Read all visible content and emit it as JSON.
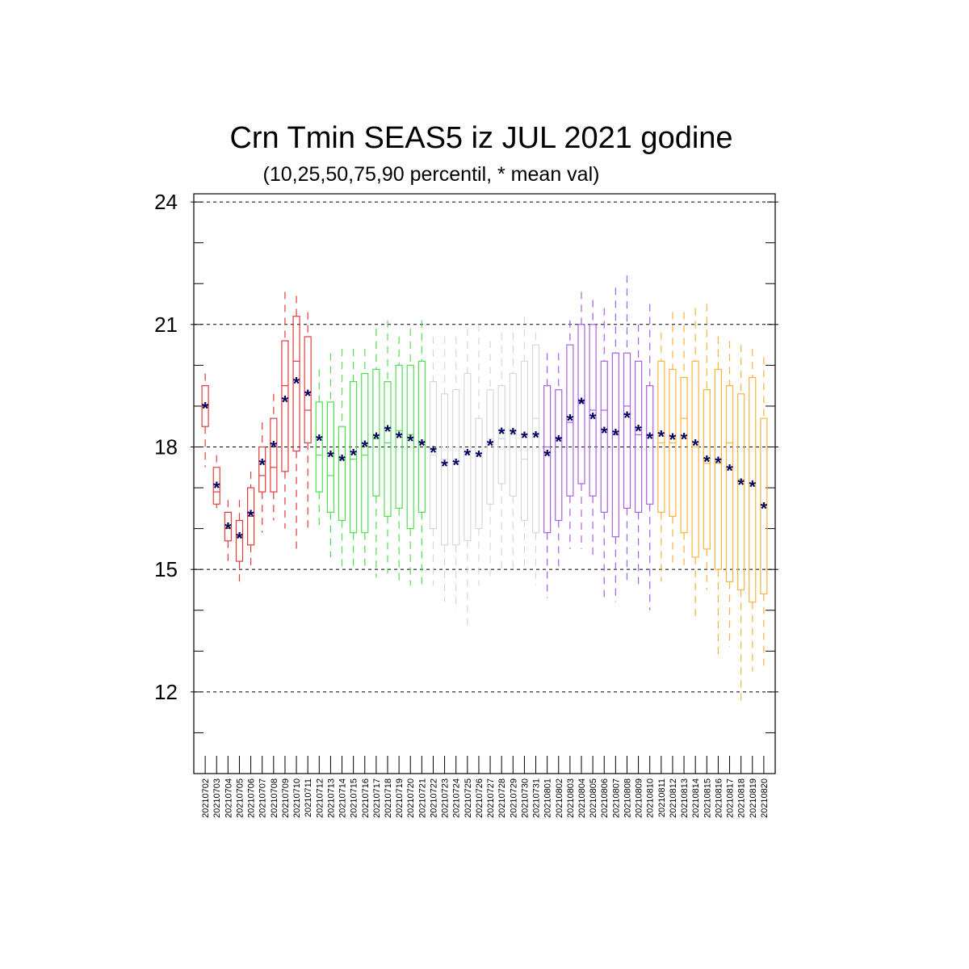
{
  "chart_data": {
    "type": "boxplot",
    "title": "Crn Tmin SEAS5 iz JUL 2021 godine",
    "subtitle": "(10,25,50,75,90 percentil, * mean val)",
    "ylim": [
      10,
      24.2
    ],
    "yticks": [
      "24",
      "21",
      "18",
      "15",
      "12"
    ],
    "ytick_values": [
      24,
      21,
      18,
      15,
      12
    ],
    "grid": "horizontal dashed at major ticks",
    "colors": {
      "week1": "#e03c3c",
      "week2": "#4ee04e",
      "week3": "#d8d8d8",
      "week4": "#a95ee8",
      "week5": "#f5b43c",
      "mean_marker": "#000060",
      "grid": "#000000"
    },
    "categories": [
      "20210702",
      "20210703",
      "20210704",
      "20210705",
      "20210706",
      "20210707",
      "20210708",
      "20210709",
      "20210710",
      "20210711",
      "20210712",
      "20210713",
      "20210714",
      "20210715",
      "20210716",
      "20210717",
      "20210718",
      "20210719",
      "20210720",
      "20210721",
      "20210722",
      "20210723",
      "20210724",
      "20210725",
      "20210726",
      "20210727",
      "20210728",
      "20210729",
      "20210730",
      "20210731",
      "20210801",
      "20210802",
      "20210803",
      "20210804",
      "20210805",
      "20210806",
      "20210807",
      "20210808",
      "20210809",
      "20210810",
      "20210811",
      "20210812",
      "20210813",
      "20210814",
      "20210815",
      "20210816",
      "20210817",
      "20210818",
      "20210819",
      "20210820"
    ],
    "color_group": [
      "week1",
      "week1",
      "week1",
      "week1",
      "week1",
      "week1",
      "week1",
      "week1",
      "week1",
      "week1",
      "week2",
      "week2",
      "week2",
      "week2",
      "week2",
      "week2",
      "week2",
      "week2",
      "week2",
      "week2",
      "week3",
      "week3",
      "week3",
      "week3",
      "week3",
      "week3",
      "week3",
      "week3",
      "week3",
      "week3",
      "week4",
      "week4",
      "week4",
      "week4",
      "week4",
      "week4",
      "week4",
      "week4",
      "week4",
      "week4",
      "week5",
      "week5",
      "week5",
      "week5",
      "week5",
      "week5",
      "week5",
      "week5",
      "week5",
      "week5"
    ],
    "p10": [
      17.5,
      16.5,
      15.2,
      14.6,
      15.1,
      15.9,
      16.2,
      16.0,
      15.5,
      16.0,
      16.0,
      15.3,
      15.0,
      15.0,
      15.0,
      14.8,
      14.9,
      14.7,
      14.6,
      14.6,
      14.6,
      14.2,
      14.0,
      13.6,
      14.6,
      14.8,
      15.0,
      15.0,
      15.0,
      14.6,
      14.3,
      15.0,
      15.5,
      15.5,
      15.3,
      14.2,
      14.2,
      14.7,
      14.6,
      14.0,
      14.7,
      15.0,
      15.1,
      13.8,
      14.5,
      12.8,
      13.1,
      11.7,
      12.5,
      12.6
    ],
    "p25": [
      18.5,
      16.6,
      15.7,
      15.2,
      15.6,
      16.9,
      16.9,
      17.4,
      17.9,
      18.1,
      16.9,
      16.4,
      16.2,
      15.9,
      15.9,
      16.8,
      16.3,
      16.5,
      16.0,
      16.4,
      16.0,
      15.6,
      15.6,
      15.7,
      16.0,
      16.6,
      17.1,
      16.8,
      16.2,
      15.9,
      15.9,
      16.2,
      16.8,
      17.1,
      16.8,
      16.4,
      15.8,
      16.5,
      16.4,
      16.6,
      16.4,
      16.3,
      15.9,
      15.3,
      15.5,
      15.0,
      14.7,
      14.5,
      14.2,
      14.4
    ],
    "p50": [
      19.0,
      16.9,
      16.0,
      15.8,
      16.3,
      17.3,
      17.5,
      19.5,
      20.1,
      18.9,
      17.8,
      17.3,
      17.7,
      17.7,
      17.8,
      18.2,
      18.1,
      18.4,
      18.3,
      18.1,
      17.8,
      17.7,
      17.7,
      17.8,
      17.8,
      18.2,
      18.2,
      18.3,
      17.7,
      18.7,
      18.0,
      18.2,
      18.6,
      19.1,
      18.9,
      18.9,
      18.3,
      19.0,
      18.3,
      18.3,
      18.1,
      18.1,
      18.7,
      18.0,
      17.6,
      17.6,
      18.1,
      17.2,
      17.1,
      16.6
    ],
    "p75": [
      19.5,
      17.5,
      16.4,
      16.2,
      17.0,
      18.0,
      18.7,
      20.6,
      21.2,
      20.7,
      19.1,
      19.1,
      18.5,
      19.6,
      19.8,
      19.9,
      19.6,
      20.0,
      20.0,
      20.1,
      19.6,
      19.3,
      19.4,
      19.8,
      18.7,
      19.4,
      19.5,
      19.8,
      20.1,
      20.5,
      19.5,
      19.4,
      20.5,
      21.0,
      21.0,
      20.1,
      20.3,
      20.3,
      20.1,
      19.5,
      20.1,
      19.9,
      19.7,
      20.1,
      19.4,
      19.9,
      19.5,
      19.3,
      19.7,
      18.7
    ],
    "p90": [
      19.8,
      17.8,
      16.7,
      16.7,
      17.4,
      18.6,
      19.3,
      21.8,
      21.7,
      21.3,
      19.9,
      20.3,
      20.4,
      20.4,
      20.4,
      20.9,
      21.1,
      20.7,
      20.9,
      21.1,
      20.7,
      20.7,
      20.7,
      20.9,
      21.0,
      20.6,
      20.8,
      20.8,
      21.2,
      20.8,
      20.3,
      20.3,
      21.1,
      21.8,
      21.6,
      21.4,
      21.9,
      22.2,
      21.0,
      21.5,
      20.8,
      21.3,
      21.3,
      21.4,
      21.5,
      20.7,
      20.6,
      20.5,
      20.4,
      20.2
    ],
    "mean": [
      18.97,
      17.02,
      16.02,
      15.78,
      16.33,
      17.58,
      18.02,
      19.13,
      19.58,
      19.28,
      18.18,
      17.78,
      17.68,
      17.82,
      18.03,
      18.23,
      18.41,
      18.25,
      18.17,
      18.06,
      17.89,
      17.55,
      17.58,
      17.82,
      17.78,
      18.06,
      18.35,
      18.34,
      18.25,
      18.26,
      17.8,
      18.16,
      18.67,
      19.08,
      18.71,
      18.37,
      18.32,
      18.74,
      18.42,
      18.23,
      18.28,
      18.21,
      18.22,
      18.06,
      17.66,
      17.63,
      17.45,
      17.1,
      17.05,
      16.52
    ]
  }
}
